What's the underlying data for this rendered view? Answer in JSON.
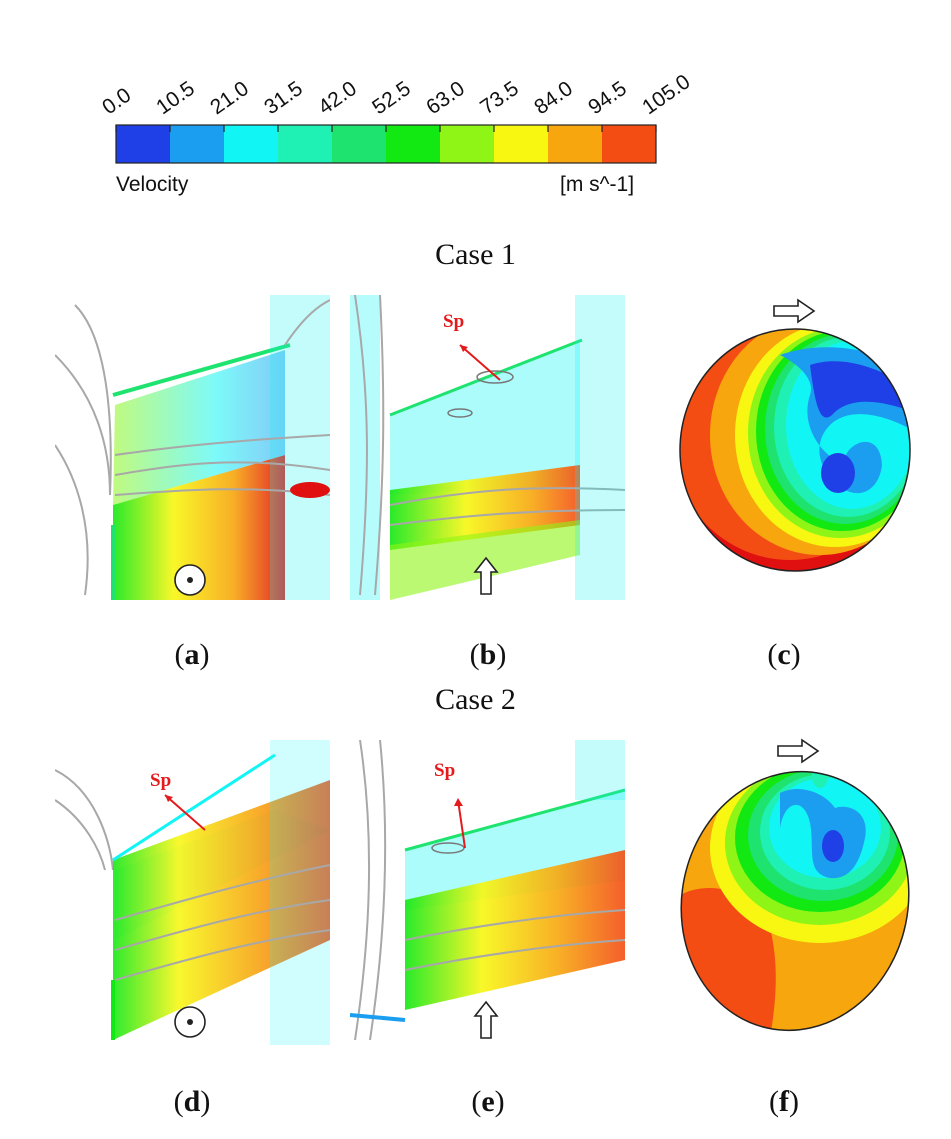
{
  "colorbar": {
    "ticks": [
      "0.0",
      "10.5",
      "21.0",
      "31.5",
      "42.0",
      "52.5",
      "63.0",
      "73.5",
      "84.0",
      "94.5",
      "105.0"
    ],
    "colors": [
      "#1e40e6",
      "#1c9ef0",
      "#12f5f5",
      "#1ff0b4",
      "#1ee36e",
      "#12e812",
      "#8ef516",
      "#f7f711",
      "#f7a60e",
      "#f34d14"
    ],
    "label": "Velocity",
    "unit": "[m s^-1]"
  },
  "cases": [
    {
      "title": "Case 1",
      "panels": [
        {
          "letter": "a",
          "marker": "out-of-plane-symbol"
        },
        {
          "letter": "b",
          "marker": "up-arrow",
          "annotation": "Sp"
        },
        {
          "letter": "c",
          "marker": "right-arrow"
        }
      ]
    },
    {
      "title": "Case 2",
      "panels": [
        {
          "letter": "d",
          "marker": "out-of-plane-symbol",
          "annotation": "Sp"
        },
        {
          "letter": "e",
          "marker": "up-arrow",
          "annotation": "Sp"
        },
        {
          "letter": "f",
          "marker": "right-arrow"
        }
      ]
    }
  ],
  "colors": {
    "streamline": "#a8a8a8",
    "annotation": "#e41a1c"
  }
}
